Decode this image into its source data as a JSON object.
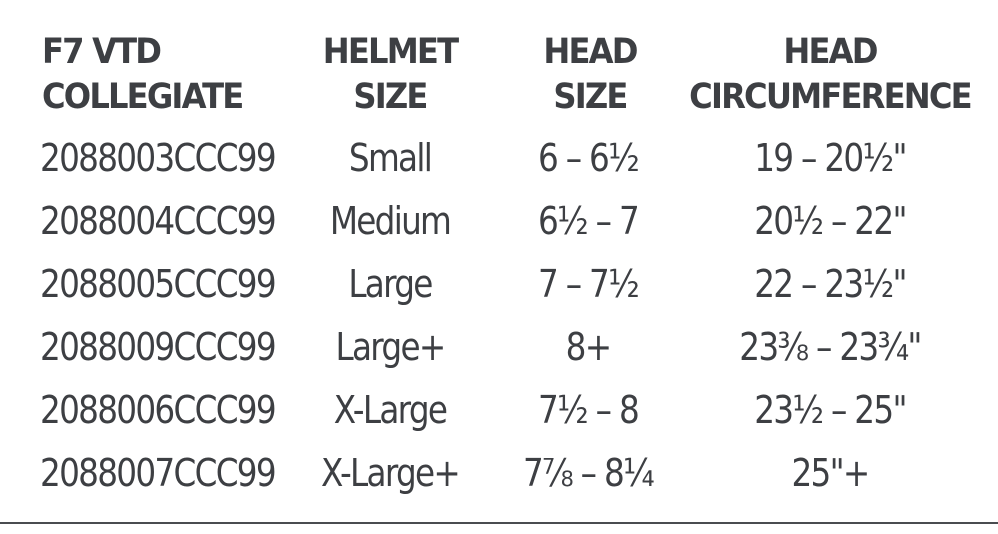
{
  "table": {
    "headers": [
      [
        "F7 VTD",
        "COLLEGIATE"
      ],
      [
        "HELMET",
        "SIZE"
      ],
      [
        "HEAD",
        "SIZE"
      ],
      [
        "HEAD",
        "CIRCUMFERENCE"
      ]
    ],
    "rows": [
      [
        "2088003CCC99",
        "Small",
        "6 – 6½",
        "19 – 20½\""
      ],
      [
        "2088004CCC99",
        "Medium",
        "6½ – 7",
        "20½ – 22\""
      ],
      [
        "2088005CCC99",
        "Large",
        "7 – 7½",
        "22 – 23½\""
      ],
      [
        "2088009CCC99",
        "Large+",
        "8+",
        "23⅜ – 23¾\""
      ],
      [
        "2088006CCC99",
        "X-Large",
        "7½ – 8",
        "23½ – 25\""
      ],
      [
        "2088007CCC99",
        "X-Large+",
        "7⅞ – 8¼",
        "25\"+"
      ]
    ]
  }
}
